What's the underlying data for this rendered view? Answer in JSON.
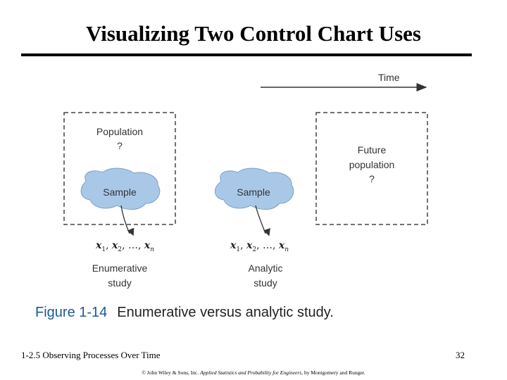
{
  "title": "Visualizing Two Control Chart Uses",
  "diagram": {
    "time_label": "Time",
    "population_label": "Population",
    "population_q": "?",
    "future_label_line1": "Future",
    "future_label_line2": "population",
    "future_q": "?",
    "sample_label": "Sample",
    "enumerative_line1": "Enumerative",
    "enumerative_line2": "study",
    "analytic_line1": "Analytic",
    "analytic_line2": "study",
    "sample_notation": "x1, x2, …, xn",
    "blob_color": "#a9c8e8",
    "box_stroke": "#444444"
  },
  "caption": {
    "figure_number": "Figure 1-14",
    "text": "Enumerative versus analytic study."
  },
  "footer": {
    "section": "1-2.5 Observing Processes Over Time",
    "page": "32",
    "copyright_prefix": "© John Wiley & Sons, Inc.",
    "copyright_book": "Applied Statistics and Probability for Engineers",
    "copyright_suffix": ", by Montgomery and Runger."
  }
}
